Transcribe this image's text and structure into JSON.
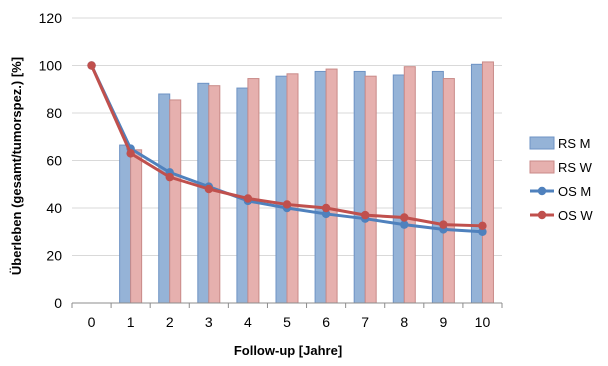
{
  "chart_data": {
    "type": "bar",
    "title": "",
    "xlabel": "Follow-up [Jahre]",
    "ylabel": "Überleben (gesamt/tumorspez.) [%]",
    "ylim": [
      0,
      120
    ],
    "yticks": [
      0,
      20,
      40,
      60,
      80,
      100,
      120
    ],
    "grid": "horizontal",
    "legend_position": "right",
    "categories": [
      "0",
      "1",
      "2",
      "3",
      "4",
      "5",
      "6",
      "7",
      "8",
      "9",
      "10"
    ],
    "series": [
      {
        "name": "RS M",
        "type": "bar",
        "color": "#95B3D7",
        "stroke": "#6E93C4",
        "values": [
          null,
          66.5,
          88,
          92.5,
          90.5,
          95.5,
          97.5,
          97.5,
          96,
          97.5,
          100.5
        ]
      },
      {
        "name": "RS W",
        "type": "bar",
        "color": "#E6B0AE",
        "stroke": "#C98A88",
        "values": [
          null,
          64.5,
          85.5,
          91.5,
          94.5,
          96.5,
          98.5,
          95.5,
          99.5,
          94.5,
          101.5
        ]
      },
      {
        "name": "OS M",
        "type": "line",
        "color": "#4F81BD",
        "values": [
          100,
          65,
          55,
          49,
          43,
          40,
          37.5,
          35.5,
          33,
          31,
          30
        ]
      },
      {
        "name": "OS W",
        "type": "line",
        "color": "#C0504D",
        "values": [
          100,
          63,
          53,
          48,
          44,
          41.5,
          40,
          37,
          36,
          33,
          32.5
        ]
      }
    ]
  }
}
